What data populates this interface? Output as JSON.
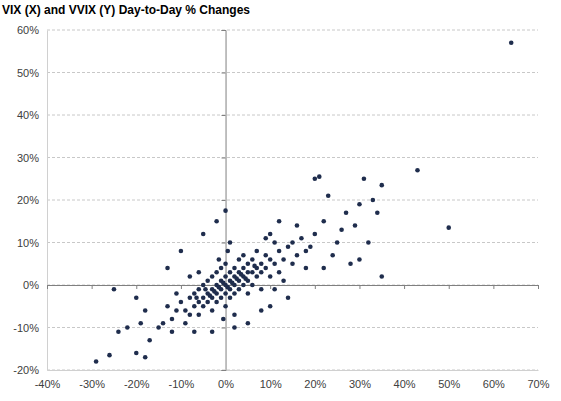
{
  "chart_data": {
    "type": "scatter",
    "title": "VIX (X) and VVIX (Y) Day-to-Day % Changes",
    "color": "#1f2d4d",
    "marker": "circle",
    "grid": true,
    "x": [
      64,
      43,
      50,
      35,
      31,
      20,
      21,
      35,
      33,
      30,
      -29,
      -26,
      -25,
      -20,
      -18,
      -22,
      -24,
      -19,
      -17,
      -15,
      -20,
      -18,
      0,
      -2,
      -5,
      -10,
      -13,
      28,
      26,
      24,
      22,
      18,
      16,
      15,
      12,
      10,
      8,
      10,
      14,
      2,
      -3,
      -7,
      5,
      -9,
      -8,
      -8,
      -7,
      -7,
      -6,
      -6,
      -6,
      -5,
      -5,
      -5,
      -4,
      -4,
      -4,
      -3,
      -3,
      -3,
      -3,
      -2,
      -2,
      -2,
      -2,
      -1,
      -1,
      -1,
      -1,
      0,
      0,
      0,
      0,
      0,
      1,
      1,
      1,
      1,
      2,
      2,
      2,
      2,
      3,
      3,
      3,
      3,
      4,
      4,
      4,
      4,
      5,
      5,
      5,
      5,
      6,
      6,
      6,
      7,
      7,
      7,
      8,
      8,
      9,
      9,
      10,
      10,
      11,
      12,
      12,
      13,
      14,
      15,
      16,
      17,
      18,
      19,
      -1.5,
      -0.5,
      0.5,
      1.5,
      -2.5,
      2.5,
      -3.5,
      3.5,
      -4.5,
      4.5,
      -6.5,
      6.5,
      -10,
      -11,
      -12,
      -13,
      -14,
      -9,
      -11,
      0.5,
      -0.5,
      1,
      2,
      -8,
      8,
      11,
      -12,
      13,
      20,
      22,
      25,
      27,
      29,
      32,
      30,
      34,
      23,
      11,
      9,
      -6,
      -1.5
    ],
    "values": [
      57,
      27,
      13.5,
      2,
      25,
      25,
      25.5,
      23.5,
      20,
      19,
      -18,
      -16.5,
      -1,
      -16,
      -17,
      -10,
      -11,
      -9,
      -13,
      -10,
      -3,
      -6,
      17.5,
      15,
      12,
      8,
      4,
      5,
      13,
      7,
      4,
      8,
      14,
      10,
      15,
      12,
      -6,
      -5,
      -3,
      -10,
      -11,
      -11,
      -9,
      -6,
      -3,
      -7,
      -2,
      -5,
      -4,
      -1,
      -7,
      -3,
      0,
      -5,
      -2,
      -4,
      1,
      -1,
      -3,
      -6,
      2,
      -2,
      0,
      -4,
      3,
      -1,
      1,
      -3,
      4,
      0,
      -2,
      2,
      -5,
      5,
      1,
      -1,
      3,
      -3,
      0,
      2,
      4,
      -2,
      1,
      3,
      -1,
      6,
      2,
      0,
      4,
      7,
      3,
      1,
      5,
      -2,
      3,
      6,
      0,
      4,
      2,
      8,
      5,
      3,
      4,
      7,
      6,
      2,
      5,
      8,
      3,
      6,
      9,
      5,
      7,
      11,
      4,
      9,
      -0.5,
      0.5,
      -0.5,
      0.5,
      -1.5,
      1.5,
      -2.5,
      2.5,
      -1,
      1.5,
      -3,
      4.5,
      -4,
      -6,
      -8,
      -5,
      -9,
      -9,
      -2,
      8,
      -8,
      10,
      -7,
      2,
      -1,
      -1,
      -11,
      1,
      12,
      15,
      10,
      17,
      14,
      10,
      6,
      17,
      21,
      10,
      11,
      3,
      6
    ],
    "xlim": [
      -40,
      70
    ],
    "ylim": [
      -20,
      60
    ],
    "xticks": [
      {
        "value": -40,
        "label": "-40%"
      },
      {
        "value": -30,
        "label": "-30%"
      },
      {
        "value": -20,
        "label": "-20%"
      },
      {
        "value": -10,
        "label": "-10%"
      },
      {
        "value": 0,
        "label": "0%"
      },
      {
        "value": 10,
        "label": "10%"
      },
      {
        "value": 20,
        "label": "20%"
      },
      {
        "value": 30,
        "label": "30%"
      },
      {
        "value": 40,
        "label": "40%"
      },
      {
        "value": 50,
        "label": "50%"
      },
      {
        "value": 60,
        "label": "60%"
      },
      {
        "value": 70,
        "label": "70%"
      }
    ],
    "yticks": [
      {
        "value": -20,
        "label": "-20%"
      },
      {
        "value": -10,
        "label": "-10%"
      },
      {
        "value": 0,
        "label": "0%"
      },
      {
        "value": 10,
        "label": "10%"
      },
      {
        "value": 20,
        "label": "20%"
      },
      {
        "value": 30,
        "label": "30%"
      },
      {
        "value": 40,
        "label": "40%"
      },
      {
        "value": 50,
        "label": "50%"
      },
      {
        "value": 60,
        "label": "60%"
      }
    ]
  }
}
